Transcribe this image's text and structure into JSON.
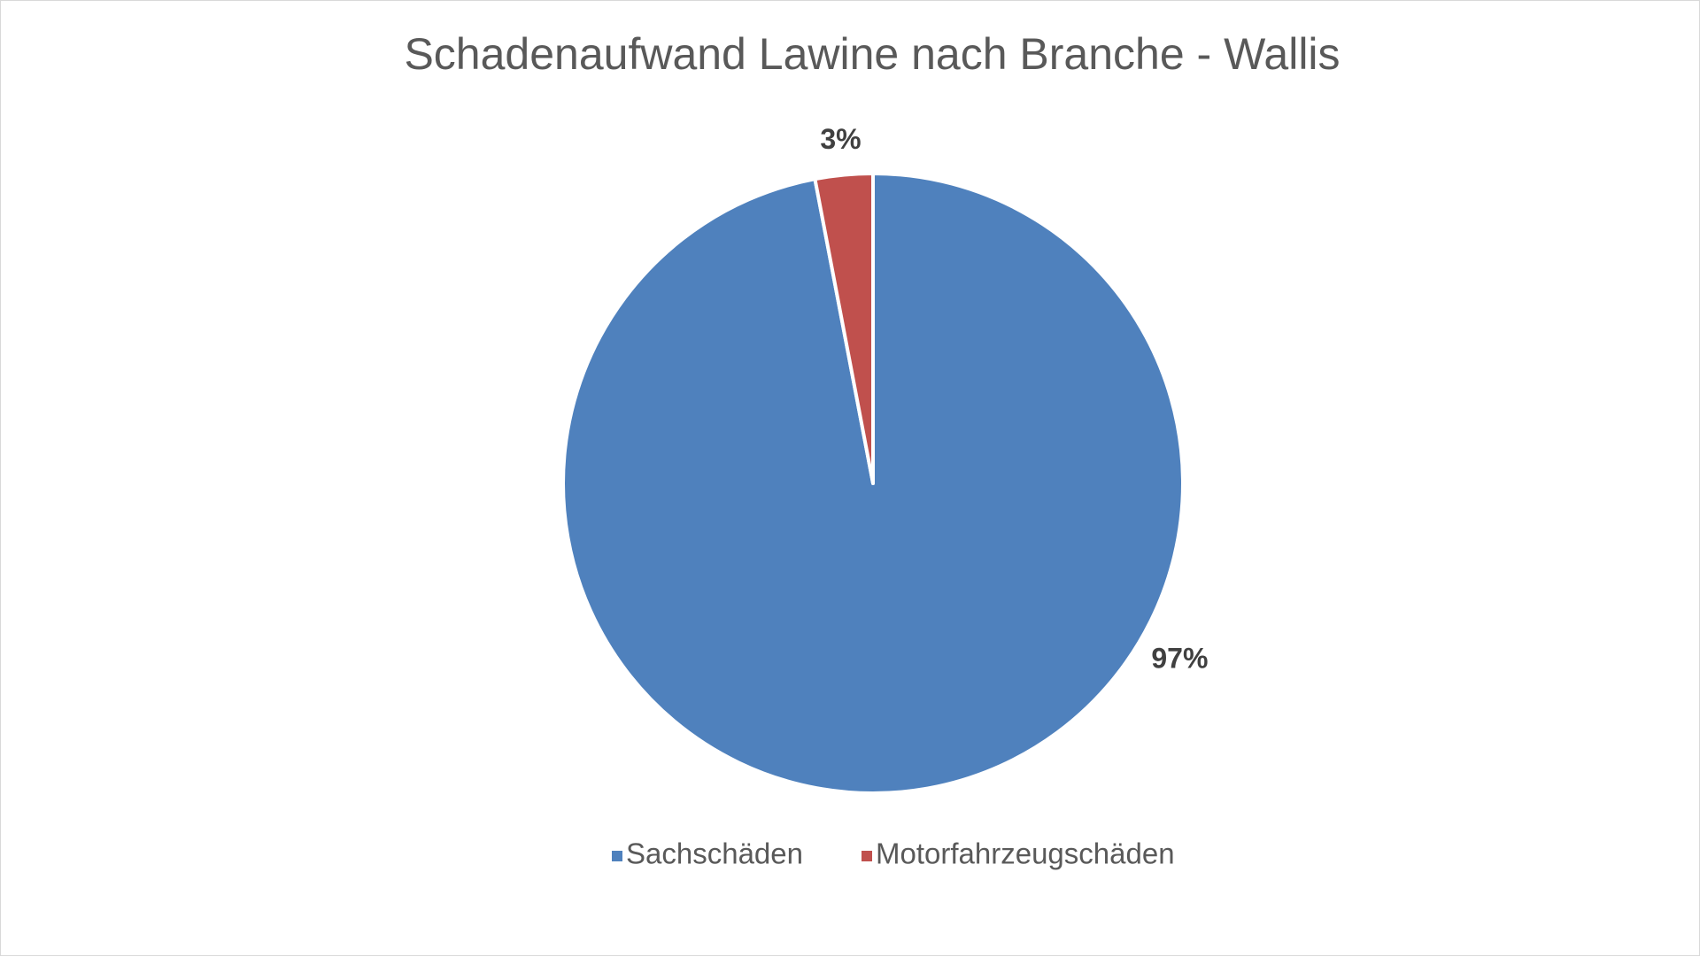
{
  "chart_data": {
    "type": "pie",
    "title": "Schadenaufwand Lawine nach Branche - Wallis",
    "categories": [
      "Sachschäden",
      "Motorfahrzeugschäden"
    ],
    "values": [
      97,
      3
    ],
    "data_labels": [
      "97%",
      "3%"
    ],
    "colors": [
      "#4F81BD",
      "#C0504D"
    ],
    "legend_position": "bottom",
    "start_angle": "12 o'clock, clockwise"
  }
}
